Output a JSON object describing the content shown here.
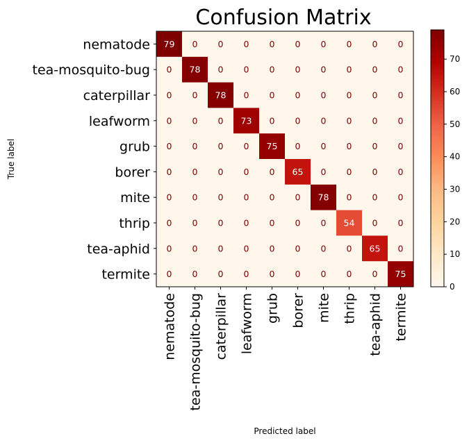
{
  "chart_data": {
    "type": "heatmap",
    "title": "Confusion Matrix",
    "xlabel": "Predicted label",
    "ylabel": "True label",
    "labels": [
      "nematode",
      "tea-mosquito-bug",
      "caterpillar",
      "leafworm",
      "grub",
      "borer",
      "mite",
      "thrip",
      "tea-aphid",
      "termite"
    ],
    "matrix": [
      [
        79,
        0,
        0,
        0,
        0,
        0,
        0,
        0,
        0,
        0
      ],
      [
        0,
        78,
        0,
        0,
        0,
        0,
        0,
        0,
        0,
        0
      ],
      [
        0,
        0,
        78,
        0,
        0,
        0,
        0,
        0,
        0,
        0
      ],
      [
        0,
        0,
        0,
        73,
        0,
        0,
        0,
        0,
        0,
        0
      ],
      [
        0,
        0,
        0,
        0,
        75,
        0,
        0,
        0,
        0,
        0
      ],
      [
        0,
        0,
        0,
        0,
        0,
        65,
        0,
        0,
        0,
        0
      ],
      [
        0,
        0,
        0,
        0,
        0,
        0,
        78,
        0,
        0,
        0
      ],
      [
        0,
        0,
        0,
        0,
        0,
        0,
        0,
        54,
        0,
        0
      ],
      [
        0,
        0,
        0,
        0,
        0,
        0,
        0,
        0,
        65,
        0
      ],
      [
        0,
        0,
        0,
        0,
        0,
        0,
        0,
        0,
        0,
        75
      ]
    ],
    "colormap": "OrRd",
    "colorbar": {
      "min": 0,
      "max": 79,
      "ticks": [
        0,
        10,
        20,
        30,
        40,
        50,
        60,
        70
      ]
    },
    "grid": false
  }
}
